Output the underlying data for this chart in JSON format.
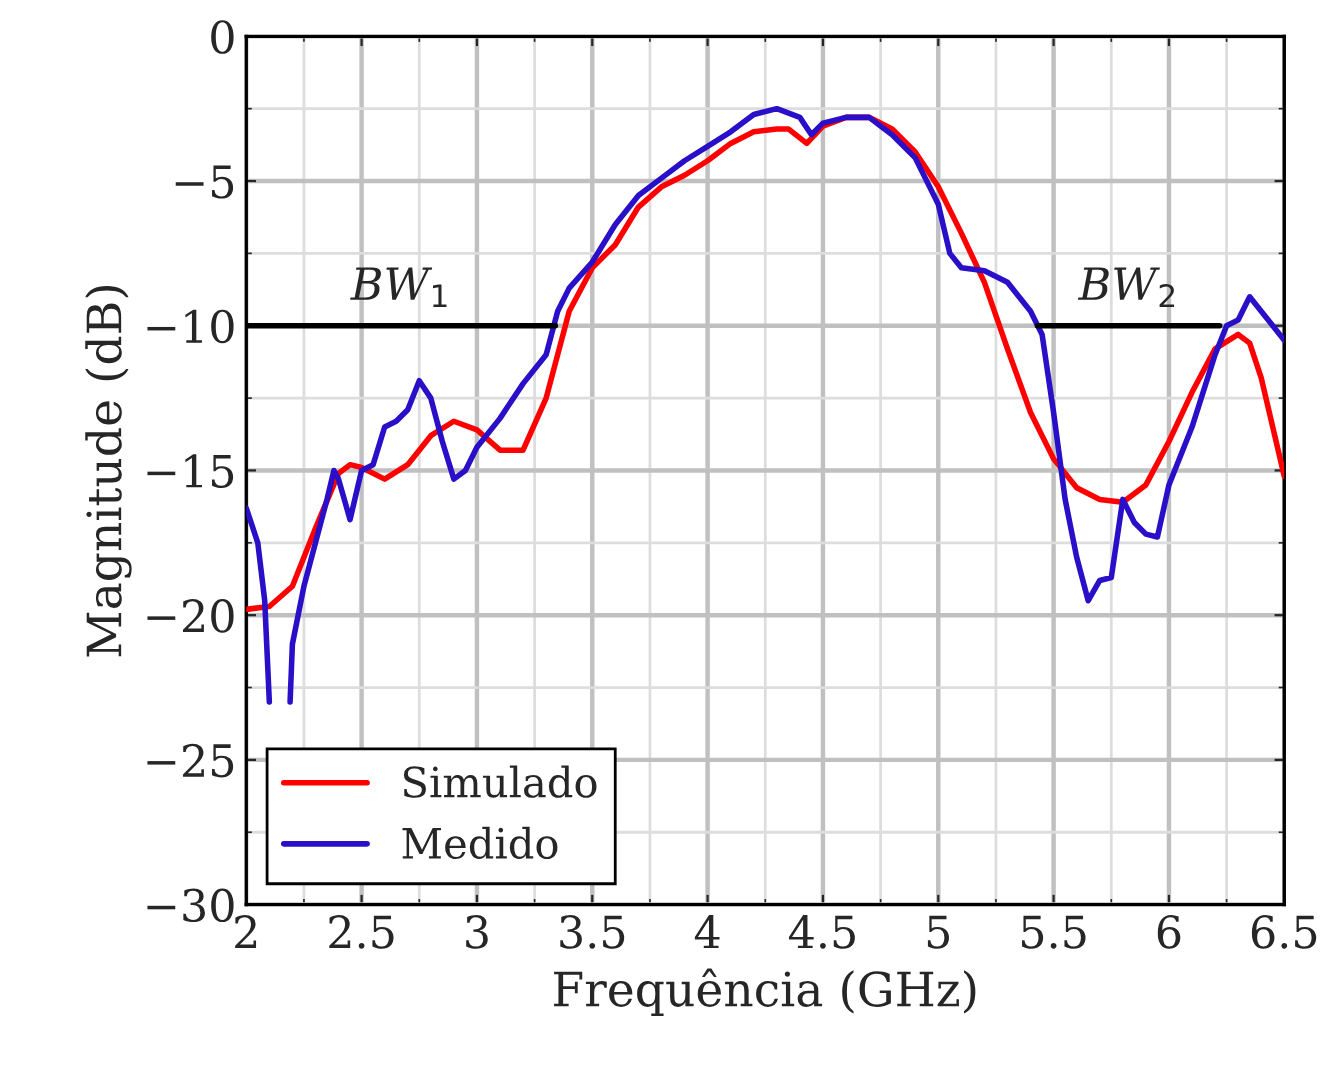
{
  "chart_data": {
    "type": "line",
    "xlabel": "Frequência (GHz)",
    "ylabel": "Magnitude (dB)",
    "xlim": [
      2,
      6.5
    ],
    "ylim": [
      -30,
      0
    ],
    "xticks": [
      2,
      2.5,
      3,
      3.5,
      4,
      4.5,
      5,
      5.5,
      6,
      6.5
    ],
    "yticks": [
      -30,
      -25,
      -20,
      -15,
      -10,
      -5,
      0
    ],
    "grid": true,
    "legend": "bottom left",
    "line_style": "solid",
    "series": [
      {
        "name": "Simulado",
        "color": "#ff0000",
        "x": [
          2,
          2.1,
          2.2,
          2.3,
          2.4,
          2.45,
          2.5,
          2.6,
          2.7,
          2.8,
          2.9,
          3.0,
          3.1,
          3.2,
          3.3,
          3.4,
          3.5,
          3.6,
          3.7,
          3.8,
          3.9,
          4.0,
          4.1,
          4.2,
          4.3,
          4.35,
          4.43,
          4.5,
          4.6,
          4.7,
          4.8,
          4.9,
          5.0,
          5.1,
          5.2,
          5.3,
          5.4,
          5.5,
          5.6,
          5.7,
          5.8,
          5.9,
          6.0,
          6.1,
          6.2,
          6.3,
          6.35,
          6.4,
          6.5
        ],
        "values": [
          -19.8,
          -19.7,
          -19,
          -17,
          -15.1,
          -14.8,
          -14.9,
          -15.3,
          -14.8,
          -13.8,
          -13.3,
          -13.6,
          -14.3,
          -14.3,
          -12.5,
          -9.5,
          -8,
          -7.2,
          -5.9,
          -5.2,
          -4.8,
          -4.3,
          -3.7,
          -3.3,
          -3.2,
          -3.2,
          -3.7,
          -3.1,
          -2.8,
          -2.8,
          -3.2,
          -4,
          -5.2,
          -6.8,
          -8.5,
          -10.8,
          -13,
          -14.6,
          -15.6,
          -16,
          -16.1,
          -15.5,
          -14,
          -12.3,
          -10.8,
          -10.3,
          -10.6,
          -11.8,
          -15.2
        ]
      },
      {
        "name": "Medido",
        "color": "#2a0fc8",
        "x": [
          2.0,
          2.05,
          2.08,
          2.1,
          2.12,
          2.17,
          2.19,
          2.2,
          2.25,
          2.3,
          2.35,
          2.38,
          2.4,
          2.45,
          2.5,
          2.55,
          2.6,
          2.65,
          2.7,
          2.75,
          2.8,
          2.85,
          2.9,
          2.95,
          3.0,
          3.1,
          3.2,
          3.3,
          3.35,
          3.4,
          3.5,
          3.6,
          3.7,
          3.8,
          3.9,
          4.0,
          4.1,
          4.2,
          4.3,
          4.4,
          4.45,
          4.5,
          4.6,
          4.7,
          4.8,
          4.9,
          5.0,
          5.05,
          5.1,
          5.2,
          5.3,
          5.4,
          5.45,
          5.5,
          5.55,
          5.6,
          5.65,
          5.7,
          5.75,
          5.8,
          5.85,
          5.9,
          5.95,
          6.0,
          6.1,
          6.2,
          6.25,
          6.3,
          6.35,
          6.4,
          6.5
        ],
        "values": [
          -16.3,
          -17.5,
          -19.5,
          -23,
          null,
          null,
          -23,
          -21,
          -19,
          -17.5,
          -16,
          -15,
          -15.3,
          -16.7,
          -15,
          -14.8,
          -13.5,
          -13.3,
          -12.9,
          -11.9,
          -12.5,
          -14,
          -15.3,
          -15,
          -14.2,
          -13.2,
          -12,
          -11,
          -9.5,
          -8.7,
          -7.8,
          -6.5,
          -5.5,
          -4.9,
          -4.3,
          -3.8,
          -3.3,
          -2.7,
          -2.5,
          -2.8,
          -3.4,
          -3,
          -2.8,
          -2.8,
          -3.4,
          -4.2,
          -5.8,
          -7.5,
          -8,
          -8.1,
          -8.5,
          -9.5,
          -10.3,
          -13,
          -16,
          -18,
          -19.5,
          -18.8,
          -18.7,
          -16,
          -16.8,
          -17.2,
          -17.3,
          -15.5,
          -13.5,
          -11,
          -10,
          -9.8,
          -9,
          -9.5,
          -10.5
        ]
      },
      {
        "color": "#000000",
        "x": [
          2,
          3.34
        ],
        "values": [
          -10,
          -10
        ]
      },
      {
        "color": "#000000",
        "x": [
          5.43,
          6.22
        ],
        "values": [
          -10,
          -10
        ]
      }
    ],
    "annotations": [
      "BW$_{1}$",
      "BW$_{2}$"
    ]
  }
}
